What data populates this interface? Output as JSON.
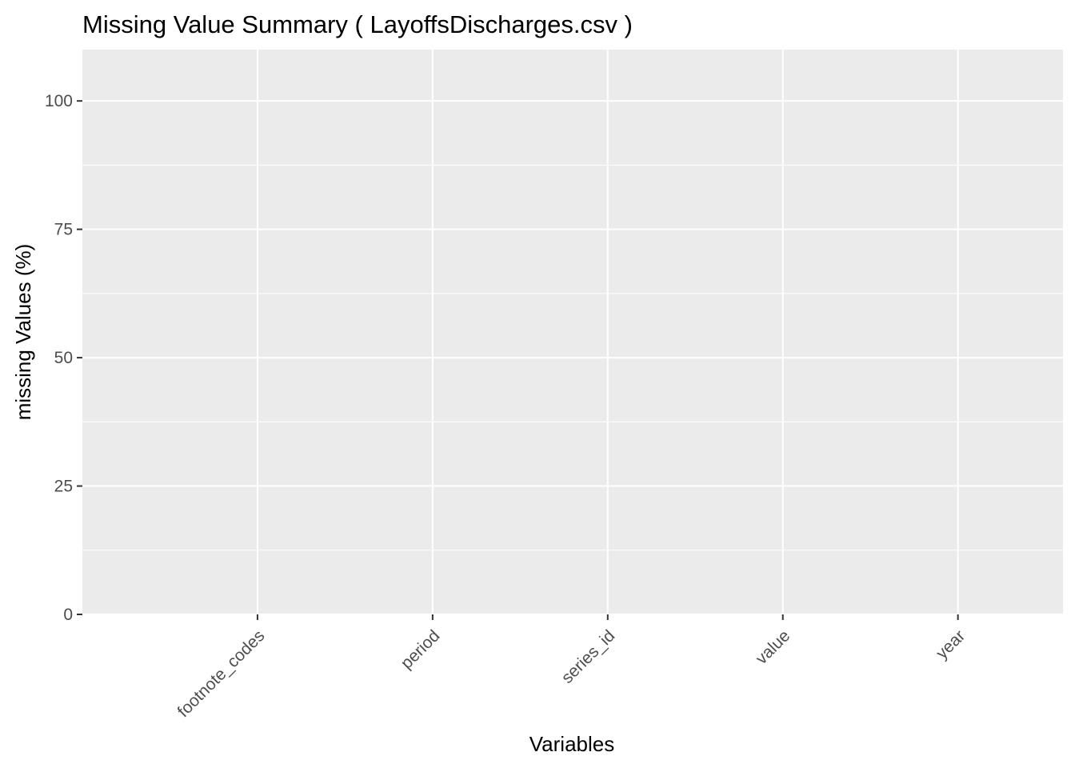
{
  "chart_data": {
    "type": "bar",
    "title": "Missing Value Summary ( LayoffsDischarges.csv )",
    "xlabel": "Variables",
    "ylabel": "missing Values (%)",
    "categories": [
      "footnote_codes",
      "period",
      "series_id",
      "value",
      "year"
    ],
    "values": [
      0,
      0,
      0,
      0,
      0
    ],
    "ylim": [
      0,
      110
    ],
    "yticks": [
      0,
      25,
      50,
      75,
      100
    ],
    "grid": true,
    "legend": "none",
    "colors": {
      "panel_background": "#EBEBEB",
      "grid_major": "#FFFFFF",
      "tick_text": "#4D4D4D",
      "tick_mark": "#333333",
      "title_text": "#000000"
    }
  }
}
